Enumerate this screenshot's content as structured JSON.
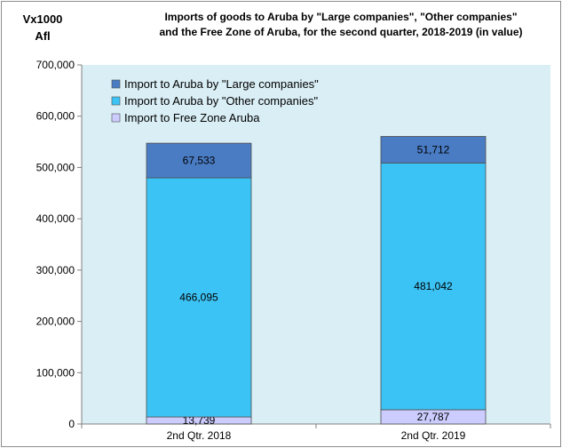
{
  "chart_data": {
    "type": "bar",
    "stacked": true,
    "title_lines": [
      "Imports of goods to Aruba by \"Large companies\", \"Other companies\"",
      "and the Free Zone of Aruba, for the second quarter, 2018-2019 (in value)"
    ],
    "ylabel_lines": [
      "Vx1000",
      "Afl"
    ],
    "ylim": [
      0,
      700000
    ],
    "yticks": [
      "0",
      "100,000",
      "200,000",
      "300,000",
      "400,000",
      "500,000",
      "600,000",
      "700,000"
    ],
    "ytick_values": [
      0,
      100000,
      200000,
      300000,
      400000,
      500000,
      600000,
      700000
    ],
    "categories": [
      "2nd Qtr. 2018",
      "2nd Qtr. 2019"
    ],
    "series": [
      {
        "name": "Import to Free Zone Aruba",
        "values": [
          13739,
          27787
        ],
        "labels": [
          "13,739",
          "27,787"
        ],
        "color": "#ccccff"
      },
      {
        "name": "Import to Aruba by \"Other companies\"",
        "values": [
          466095,
          481042
        ],
        "labels": [
          "466,095",
          "481,042"
        ],
        "color": "#3cc3f5"
      },
      {
        "name": "Import to Aruba by \"Large companies\"",
        "values": [
          67533,
          51712
        ],
        "labels": [
          "67,533",
          "51,712"
        ],
        "color": "#4a7cc4"
      }
    ],
    "legend_order": [
      2,
      1,
      0
    ],
    "legend_placement": "top-left",
    "grid": false,
    "plot_background": "#d9eef5"
  }
}
